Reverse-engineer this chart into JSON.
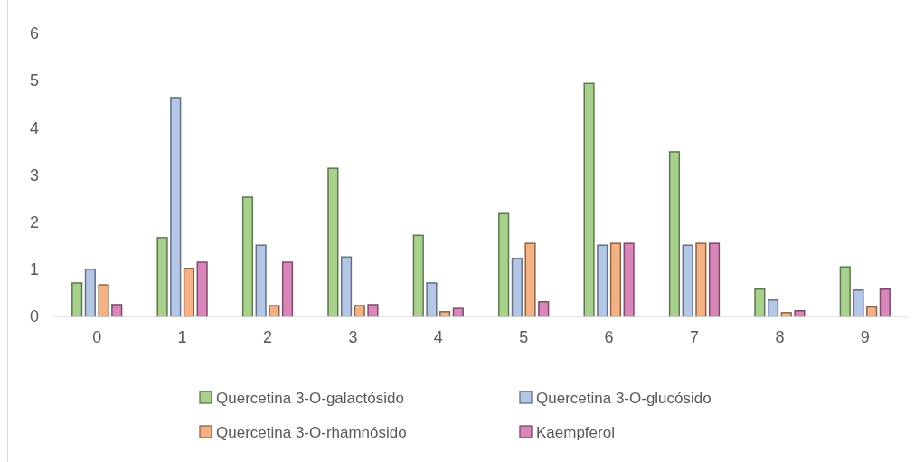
{
  "chart_data": {
    "type": "bar",
    "categories": [
      "0",
      "1",
      "2",
      "3",
      "4",
      "5",
      "6",
      "7",
      "8",
      "9"
    ],
    "series": [
      {
        "name": "Quercetina 3-O-galactósido",
        "color": "#a9d18e",
        "values": [
          0.71,
          1.67,
          2.53,
          3.14,
          1.72,
          2.18,
          4.94,
          3.49,
          0.58,
          1.05
        ]
      },
      {
        "name": "Quercetina 3-O-glucósido",
        "color": "#b4c7e7",
        "values": [
          1.0,
          4.64,
          1.51,
          1.26,
          0.71,
          1.23,
          1.51,
          1.51,
          0.35,
          0.56
        ]
      },
      {
        "name": "Quercetina 3-O-rhamnósido",
        "color": "#f4b183",
        "values": [
          0.67,
          1.02,
          0.23,
          0.23,
          0.1,
          1.55,
          1.55,
          1.55,
          0.08,
          0.2
        ]
      },
      {
        "name": "Kaempferol",
        "color": "#d986ba",
        "values": [
          0.25,
          1.15,
          1.15,
          0.25,
          0.17,
          0.31,
          1.55,
          1.55,
          0.12,
          0.58
        ]
      }
    ],
    "ylim": [
      0,
      6
    ],
    "yticks": [
      0,
      1,
      2,
      3,
      4,
      5,
      6
    ],
    "grid": false,
    "legend": "bottom"
  }
}
